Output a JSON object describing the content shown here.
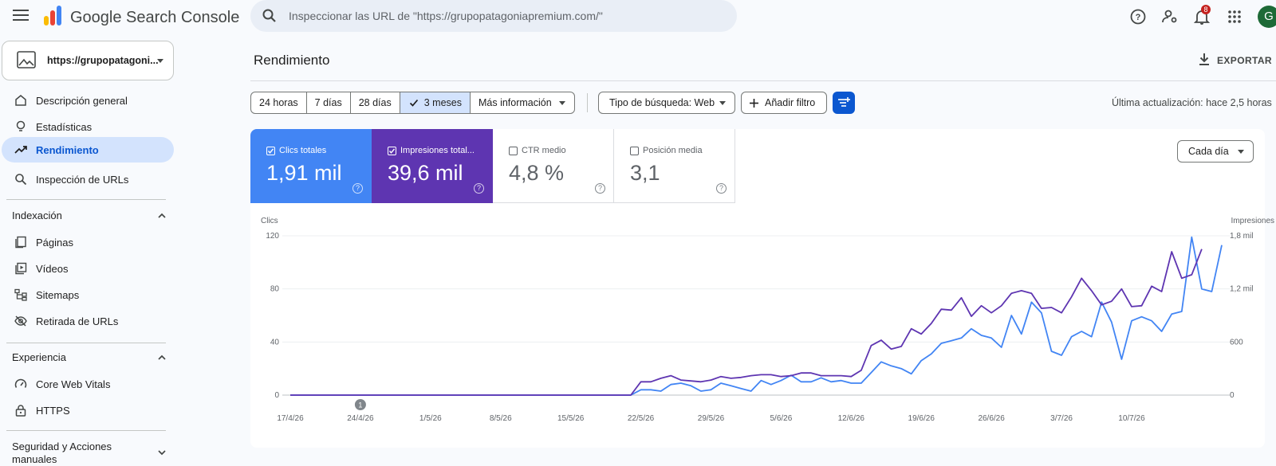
{
  "app": {
    "title": "Google Search Console",
    "search_placeholder": "Inspeccionar las URL de \"https://grupopatagoniapremium.com/\"",
    "notification_count": "8",
    "avatar_letter": "G",
    "icons": [
      "menu-icon",
      "search-console-logo",
      "search-icon",
      "help-icon",
      "manage-users-icon",
      "bell-icon",
      "apps-icon"
    ]
  },
  "property": {
    "label": "https://grupopatagoni..."
  },
  "sidebar": {
    "items": [
      {
        "label": "Descripción general",
        "icon": "home-icon"
      },
      {
        "label": "Estadísticas",
        "icon": "lightbulb-icon"
      },
      {
        "label": "Rendimiento",
        "icon": "trending-up-icon",
        "active": true
      },
      {
        "label": "Inspección de URLs",
        "icon": "search-icon"
      }
    ],
    "indexing_title": "Indexación",
    "indexing_items": [
      {
        "label": "Páginas",
        "icon": "pages-icon"
      },
      {
        "label": "Vídeos",
        "icon": "video-library-icon"
      },
      {
        "label": "Sitemaps",
        "icon": "sitemap-icon"
      },
      {
        "label": "Retirada de URLs",
        "icon": "visibility-off-icon"
      }
    ],
    "experience_title": "Experiencia",
    "experience_items": [
      {
        "label": "Core Web Vitals",
        "icon": "speed-gauge-icon"
      },
      {
        "label": "HTTPS",
        "icon": "lock-icon"
      }
    ],
    "security_title_line1": "Seguridad y Acciones",
    "security_title_line2": "manuales"
  },
  "page": {
    "title": "Rendimiento",
    "export_label": "EXPORTAR",
    "last_update": "Última actualización: hace 2,5 horas"
  },
  "filters": {
    "ranges": [
      "24 horas",
      "7 días",
      "28 días",
      "3 meses"
    ],
    "selected_range": "3 meses",
    "more": "Más información",
    "search_type": "Tipo de búsqueda: Web",
    "add_filter": "Añadir filtro"
  },
  "metrics": {
    "clicks": {
      "label": "Clics totales",
      "value": "1,91 mil",
      "checked": true,
      "color": "#4285f4"
    },
    "impressions": {
      "label": "Impresiones total...",
      "value": "39,6 mil",
      "checked": true,
      "color": "#5e35b1"
    },
    "ctr": {
      "label": "CTR medio",
      "value": "4,8 %",
      "checked": false
    },
    "position": {
      "label": "Posición media",
      "value": "3,1",
      "checked": false
    }
  },
  "granularity": "Cada día",
  "chart_data": {
    "type": "line",
    "x_tick_labels": [
      "17/4/26",
      "24/4/26",
      "1/5/26",
      "8/5/26",
      "15/5/26",
      "22/5/26",
      "29/5/26",
      "5/6/26",
      "12/6/26",
      "19/6/26",
      "26/6/26",
      "3/7/26",
      "10/7/26"
    ],
    "x_start": "17/4/26",
    "ylabel_left": "Clics",
    "ylabel_right": "Impresiones",
    "y_left_ticks": [
      "0",
      "40",
      "80",
      "120"
    ],
    "y_right_ticks": [
      "0",
      "600",
      "1,2 mil",
      "1,8 mil"
    ],
    "ylim_left": [
      0,
      120
    ],
    "ylim_right": [
      0,
      1800
    ],
    "annotation": "1",
    "grid": true,
    "series": [
      {
        "name": "Clics totales",
        "axis": "left",
        "color": "#4285f4",
        "values": [
          0,
          0,
          0,
          0,
          0,
          0,
          0,
          0,
          0,
          0,
          0,
          0,
          0,
          0,
          0,
          0,
          0,
          0,
          0,
          0,
          0,
          0,
          0,
          0,
          0,
          0,
          0,
          0,
          0,
          0,
          0,
          0,
          0,
          0,
          0,
          4,
          4,
          3,
          8,
          9,
          7,
          3,
          4,
          9,
          7,
          5,
          3,
          11,
          8,
          11,
          15,
          10,
          10,
          13,
          10,
          11,
          9,
          9,
          17,
          25,
          22,
          20,
          16,
          26,
          31,
          39,
          41,
          43,
          50,
          45,
          43,
          36,
          60,
          46,
          70,
          62,
          33,
          30,
          44,
          48,
          44,
          70,
          55,
          27,
          56,
          59,
          56,
          48,
          61,
          63,
          119,
          80,
          78,
          113
        ]
      },
      {
        "name": "Impresiones totales",
        "axis": "right",
        "color": "#5e35b1",
        "values": [
          0,
          0,
          0,
          0,
          0,
          0,
          0,
          0,
          0,
          0,
          0,
          0,
          0,
          0,
          0,
          0,
          0,
          0,
          0,
          0,
          0,
          0,
          0,
          0,
          0,
          0,
          0,
          0,
          0,
          0,
          0,
          0,
          0,
          0,
          0,
          150,
          150,
          190,
          220,
          170,
          160,
          150,
          170,
          210,
          190,
          200,
          220,
          230,
          230,
          210,
          220,
          250,
          250,
          220,
          220,
          220,
          210,
          280,
          560,
          620,
          520,
          550,
          750,
          690,
          810,
          970,
          960,
          1100,
          890,
          1010,
          930,
          1010,
          1150,
          1180,
          1150,
          980,
          990,
          930,
          1110,
          1320,
          1180,
          1020,
          1060,
          1200,
          1000,
          1010,
          1230,
          1170,
          1620,
          1320,
          1360,
          1650
        ]
      }
    ]
  }
}
